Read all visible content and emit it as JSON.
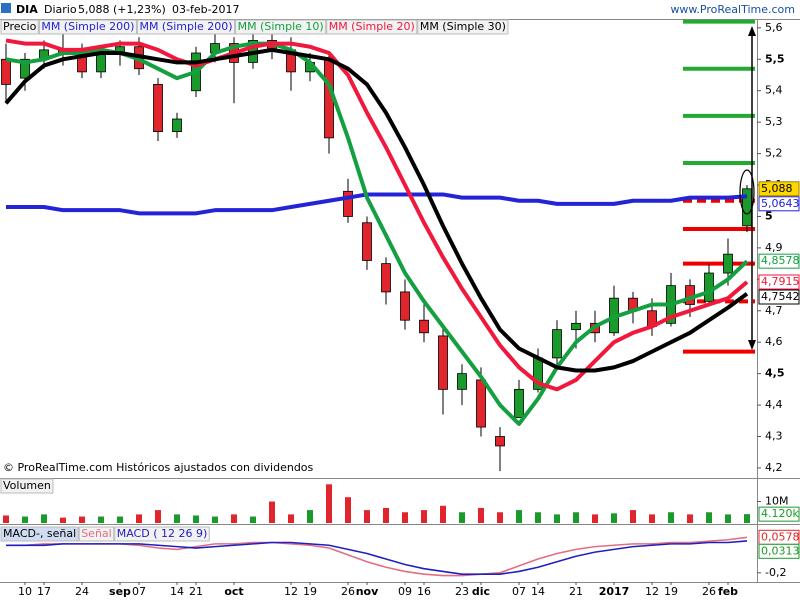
{
  "chart_data": [
    {
      "type": "candlestick",
      "title": "DIA",
      "period": "Diario",
      "last_quote": "5,088 (+1,23%)",
      "date": "03-feb-2017",
      "source": "www.ProRealTime.com",
      "note": "© ProRealTime.com Históricos ajustados con dividendos",
      "candle_name": "Precio",
      "last_label": "5,088",
      "up_color": "#1a9a2a",
      "down_color": "#e0262c",
      "categories": [
        null,
        "10",
        "17",
        null,
        "24",
        null,
        "sep",
        "07",
        null,
        "14",
        "21",
        null,
        "oct",
        null,
        null,
        "12",
        "19",
        null,
        "26",
        "nov",
        null,
        "09",
        "16",
        null,
        "23",
        "dic",
        null,
        "07",
        "14",
        null,
        "21",
        null,
        "2017",
        null,
        "12",
        "19",
        null,
        "26",
        "feb",
        null
      ],
      "open": [
        5.5,
        5.44,
        5.5,
        5.53,
        5.52,
        5.46,
        5.52,
        5.54,
        5.42,
        5.27,
        5.4,
        5.52,
        5.55,
        5.49,
        5.56,
        5.53,
        5.46,
        5.5,
        5.08,
        4.98,
        4.85,
        4.76,
        4.67,
        4.62,
        4.45,
        4.48,
        4.3,
        4.36,
        4.45,
        4.55,
        4.64,
        4.66,
        4.63,
        4.74,
        4.7,
        4.66,
        4.78,
        4.73,
        4.82,
        4.97
      ],
      "high": [
        5.55,
        5.52,
        5.56,
        5.58,
        5.55,
        5.54,
        5.56,
        5.57,
        5.44,
        5.33,
        5.54,
        5.58,
        5.57,
        5.58,
        5.6,
        5.57,
        5.52,
        5.52,
        5.12,
        5.0,
        4.87,
        4.8,
        4.72,
        4.65,
        4.53,
        4.52,
        4.33,
        4.48,
        4.58,
        4.67,
        4.7,
        4.7,
        4.78,
        4.76,
        4.74,
        4.82,
        4.8,
        4.85,
        4.93,
        5.1
      ],
      "low": [
        5.36,
        5.4,
        5.47,
        5.48,
        5.44,
        5.44,
        5.48,
        5.45,
        5.24,
        5.25,
        5.38,
        5.49,
        5.36,
        5.47,
        5.5,
        5.4,
        5.43,
        5.2,
        4.98,
        4.83,
        4.72,
        4.64,
        4.6,
        4.37,
        4.4,
        4.3,
        4.19,
        4.36,
        4.44,
        4.52,
        4.58,
        4.6,
        4.62,
        4.66,
        4.62,
        4.65,
        4.68,
        4.72,
        4.78,
        4.95
      ],
      "close": [
        5.42,
        5.5,
        5.53,
        5.52,
        5.46,
        5.52,
        5.54,
        5.47,
        5.27,
        5.31,
        5.52,
        5.55,
        5.49,
        5.56,
        5.53,
        5.46,
        5.49,
        5.25,
        5.0,
        4.86,
        4.76,
        4.67,
        4.63,
        4.45,
        4.5,
        4.33,
        4.27,
        4.45,
        4.55,
        4.64,
        4.66,
        4.63,
        4.74,
        4.7,
        4.65,
        4.78,
        4.72,
        4.82,
        4.88,
        5.088
      ],
      "legend_extra": {
        "name": "MM (Simple 200)",
        "color": "#2323d8"
      },
      "series": [
        {
          "name": "MM (Simple 200)",
          "color": "#2323d8",
          "last_label": "5,0643",
          "values": [
            5.03,
            5.03,
            5.03,
            5.02,
            5.02,
            5.02,
            5.02,
            5.01,
            5.01,
            5.01,
            5.01,
            5.02,
            5.02,
            5.02,
            5.02,
            5.03,
            5.04,
            5.05,
            5.06,
            5.07,
            5.07,
            5.07,
            5.07,
            5.07,
            5.06,
            5.06,
            5.06,
            5.05,
            5.05,
            5.04,
            5.04,
            5.04,
            5.04,
            5.05,
            5.05,
            5.05,
            5.06,
            5.06,
            5.06,
            5.0643
          ]
        },
        {
          "name": "MM (Simple 10)",
          "color": "#14a040",
          "last_label": "4,8578",
          "values": [
            5.5,
            5.49,
            5.5,
            5.52,
            5.52,
            5.53,
            5.52,
            5.5,
            5.47,
            5.44,
            5.46,
            5.52,
            5.54,
            5.55,
            5.55,
            5.53,
            5.49,
            5.42,
            5.25,
            5.06,
            4.94,
            4.82,
            4.73,
            4.65,
            4.57,
            4.49,
            4.4,
            4.34,
            4.42,
            4.52,
            4.6,
            4.65,
            4.68,
            4.7,
            4.72,
            4.72,
            4.74,
            4.76,
            4.8,
            4.8578
          ]
        },
        {
          "name": "MM (Simple 20)",
          "color": "#f0183c",
          "last_label": "4,7915",
          "values": [
            5.56,
            5.55,
            5.55,
            5.53,
            5.53,
            5.54,
            5.55,
            5.55,
            5.53,
            5.5,
            5.48,
            5.5,
            5.52,
            5.54,
            5.55,
            5.55,
            5.54,
            5.52,
            5.45,
            5.33,
            5.22,
            5.1,
            4.98,
            4.87,
            4.77,
            4.68,
            4.59,
            4.52,
            4.47,
            4.45,
            4.48,
            4.54,
            4.6,
            4.63,
            4.65,
            4.68,
            4.7,
            4.72,
            4.74,
            4.7915
          ]
        },
        {
          "name": "MM (Simple 30)",
          "color": "#000000",
          "last_label": "4,7542",
          "values": [
            5.36,
            5.43,
            5.48,
            5.5,
            5.51,
            5.52,
            5.52,
            5.51,
            5.5,
            5.49,
            5.49,
            5.5,
            5.51,
            5.52,
            5.53,
            5.52,
            5.51,
            5.5,
            5.47,
            5.42,
            5.33,
            5.22,
            5.1,
            4.97,
            4.85,
            4.74,
            4.64,
            4.58,
            4.55,
            4.52,
            4.51,
            4.51,
            4.52,
            4.54,
            4.57,
            4.6,
            4.63,
            4.67,
            4.71,
            4.7542
          ]
        }
      ],
      "levels": [
        {
          "value": 5.62,
          "color": "#22aa33"
        },
        {
          "value": 5.47,
          "color": "#22aa33"
        },
        {
          "value": 5.32,
          "color": "#22aa33"
        },
        {
          "value": 5.17,
          "color": "#22aa33"
        },
        {
          "value": 5.05,
          "color": "#ee0000",
          "dashed": true
        },
        {
          "value": 4.96,
          "color": "#ee0000"
        },
        {
          "value": 4.85,
          "color": "#ee0000"
        },
        {
          "value": 4.73,
          "color": "#ee0000",
          "dashed": true
        },
        {
          "value": 4.57,
          "color": "#ee0000"
        }
      ],
      "ylim": [
        4.168,
        5.625
      ],
      "yticks": [
        {
          "value": 5.6,
          "label": "5,6"
        },
        {
          "value": 5.5,
          "label": "5,5"
        },
        {
          "value": 5.4,
          "label": "5,4"
        },
        {
          "value": 5.3,
          "label": "5,3"
        },
        {
          "value": 5.2,
          "label": "5,2"
        },
        {
          "value": 5.1,
          "label": "5,1"
        },
        5,
        {
          "value": 4.9,
          "label": "4,9"
        },
        {
          "value": 4.8,
          "label": "4,8"
        },
        {
          "value": 4.7,
          "label": "4,7"
        },
        {
          "value": 4.6,
          "label": "4,6"
        },
        {
          "value": 4.5,
          "label": "4,5"
        },
        {
          "value": 4.4,
          "label": "4,4"
        },
        {
          "value": 4.3,
          "label": "4,3"
        },
        {
          "value": 4.2,
          "label": "4,2"
        }
      ]
    },
    {
      "type": "bar",
      "name": "Volumen",
      "last_label": "4.120k",
      "values": [
        3500000,
        3000000,
        4000000,
        2500000,
        3000000,
        3000000,
        3000000,
        4000000,
        6000000,
        4000000,
        3500000,
        3000000,
        4000000,
        3000000,
        10000000,
        4000000,
        6000000,
        18000000,
        12000000,
        6000000,
        7000000,
        5000000,
        6000000,
        8000000,
        5000000,
        7000000,
        5000000,
        6000000,
        5000000,
        4000000,
        5000000,
        4000000,
        4500000,
        6000000,
        4000000,
        5000000,
        4000000,
        5000000,
        4000000,
        4120000
      ],
      "ylim": [
        0,
        20000000
      ],
      "yticks": [
        {
          "value": 10000000,
          "label": "10M"
        }
      ]
    },
    {
      "type": "line",
      "legend_title": "MACD-, señal",
      "series": [
        {
          "name": "Señal",
          "color": "#e07080",
          "label_color": "#e0262c",
          "last_label": "0,0578",
          "values": [
            0.0,
            0.0,
            0.01,
            0.01,
            0.01,
            0.01,
            0.01,
            0.0,
            -0.02,
            -0.03,
            -0.01,
            0.01,
            0.01,
            0.02,
            0.02,
            0.01,
            0.0,
            -0.02,
            -0.07,
            -0.12,
            -0.16,
            -0.19,
            -0.21,
            -0.22,
            -0.22,
            -0.21,
            -0.2,
            -0.15,
            -0.1,
            -0.06,
            -0.03,
            -0.01,
            0.0,
            0.01,
            0.01,
            0.02,
            0.02,
            0.03,
            0.04,
            0.0578
          ]
        },
        {
          "name": "MACD ( 12 26 9)",
          "color": "#2020c0",
          "label_color": "#1a9a2a",
          "last_label": "0,0313",
          "values": [
            0.0,
            0.0,
            0.0,
            0.01,
            0.01,
            0.01,
            0.01,
            0.01,
            0.0,
            -0.01,
            -0.02,
            -0.01,
            0.0,
            0.01,
            0.02,
            0.02,
            0.01,
            0.0,
            -0.03,
            -0.06,
            -0.1,
            -0.14,
            -0.17,
            -0.19,
            -0.21,
            -0.21,
            -0.21,
            -0.19,
            -0.16,
            -0.12,
            -0.08,
            -0.05,
            -0.03,
            -0.01,
            0.0,
            0.01,
            0.01,
            0.02,
            0.02,
            0.0313
          ]
        }
      ],
      "ylim": [
        -0.267,
        0.14
      ],
      "yticks": [
        {
          "value": -0.2,
          "label": "-0,2"
        }
      ]
    }
  ]
}
